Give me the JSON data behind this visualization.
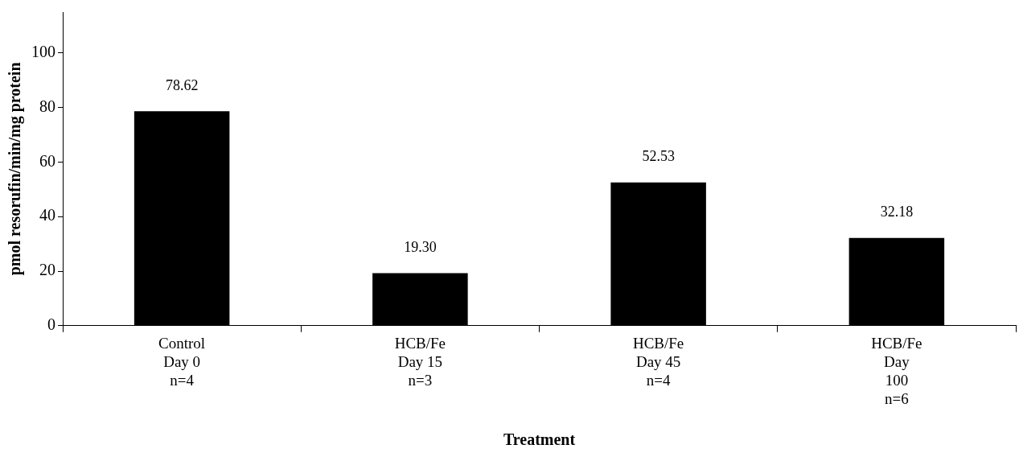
{
  "chart_data": {
    "type": "bar",
    "xlabel": "Treatment",
    "ylabel": "pmol resorufin/min/mg protein",
    "categories": [
      "Control\nDay 0\nn=4",
      "HCB/Fe\nDay 15\nn=3",
      "HCB/Fe\nDay 45\nn=4",
      "HCB/Fe\nDay\n100\nn=6"
    ],
    "values": [
      78.62,
      19.3,
      52.53,
      32.18
    ],
    "value_labels": [
      "78.62",
      "19.30",
      "52.53",
      "32.18"
    ],
    "color": "#000000",
    "ylim": [
      0,
      115
    ],
    "yticks": [
      0,
      20,
      40,
      60,
      80,
      100
    ],
    "grid": false,
    "legend": false
  }
}
